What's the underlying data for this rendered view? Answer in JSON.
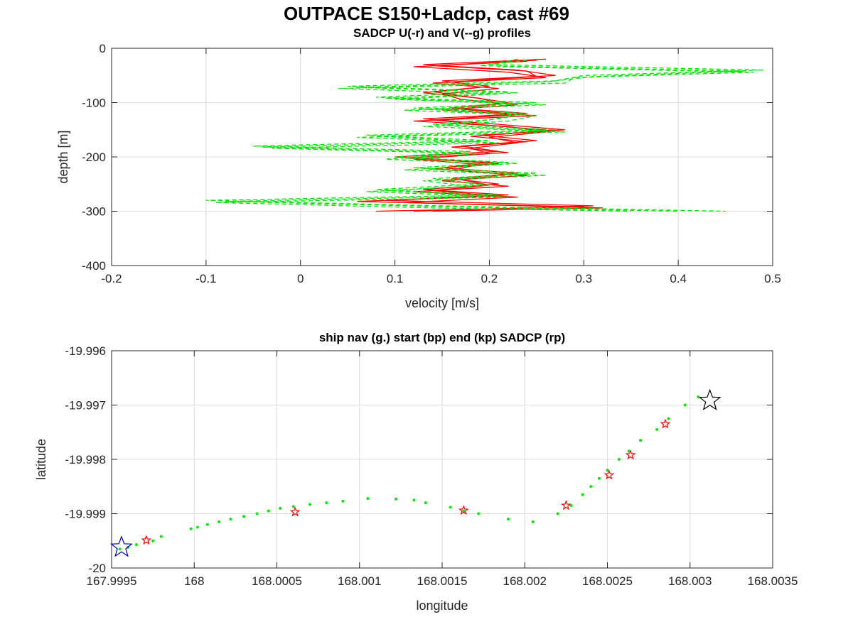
{
  "figure_title": "OUTPACE S150+Ladcp, cast #69",
  "colors": {
    "u_series": "#ff0000",
    "v_series": "#00e600",
    "grid": "#dcdcdc",
    "axes": "#262626",
    "start_marker": "#0000cc",
    "end_marker": "#000000",
    "sadcp_marker": "#ff0000",
    "nav_points": "#00ee00"
  },
  "chart_data": [
    {
      "type": "line",
      "title": "SADCP U(-r) and V(--g) profiles",
      "xlabel": "velocity [m/s]",
      "ylabel": "depth [m]",
      "xlim": [
        -0.2,
        0.5
      ],
      "ylim": [
        -400,
        0
      ],
      "xticks": [
        -0.2,
        -0.1,
        0,
        0.1,
        0.2,
        0.3,
        0.4,
        0.5
      ],
      "xtick_labels": [
        "-0.2",
        "-0.1",
        "0",
        "0.1",
        "0.2",
        "0.3",
        "0.4",
        "0.5"
      ],
      "yticks": [
        0,
        -100,
        -200,
        -300,
        -400
      ],
      "ytick_labels": [
        "0",
        "-100",
        "-200",
        "-300",
        "-400"
      ],
      "grid": true,
      "series": [
        {
          "style": "solid",
          "color": "red",
          "profiles": [
            {
              "depth": [
                -20,
                -30,
                -40,
                -50,
                -60,
                -70,
                -80,
                -90,
                -100,
                -110,
                -120,
                -130,
                -140,
                -150,
                -160,
                -170,
                -180,
                -190,
                -200,
                -210,
                -220,
                -230,
                -240,
                -250,
                -260,
                -270,
                -280,
                -290,
                -300
              ],
              "values": [
                0.26,
                0.13,
                0.23,
                0.27,
                0.15,
                0.2,
                0.14,
                0.18,
                0.22,
                0.16,
                0.24,
                0.13,
                0.21,
                0.28,
                0.19,
                0.25,
                0.17,
                0.21,
                0.1,
                0.2,
                0.15,
                0.23,
                0.16,
                0.21,
                0.13,
                0.22,
                0.09,
                0.31,
                0.12
              ]
            },
            {
              "depth": [
                -22,
                -32,
                -42,
                -52,
                -62,
                -72,
                -82,
                -92,
                -102,
                -112,
                -122,
                -132,
                -142,
                -152,
                -162,
                -172,
                -182,
                -192,
                -202,
                -212,
                -222,
                -232,
                -242,
                -252,
                -262,
                -272,
                -282,
                -292,
                -300
              ],
              "values": [
                0.25,
                0.14,
                0.24,
                0.25,
                0.16,
                0.19,
                0.13,
                0.19,
                0.21,
                0.17,
                0.23,
                0.14,
                0.2,
                0.27,
                0.18,
                0.24,
                0.16,
                0.22,
                0.11,
                0.21,
                0.14,
                0.22,
                0.17,
                0.2,
                0.14,
                0.21,
                0.06,
                0.3,
                0.08
              ]
            },
            {
              "depth": [
                -24,
                -34,
                -44,
                -54,
                -64,
                -74,
                -84,
                -94,
                -104,
                -114,
                -124,
                -134,
                -144,
                -154,
                -164,
                -174,
                -184,
                -194,
                -204,
                -214,
                -224,
                -234,
                -244,
                -254,
                -264,
                -274,
                -284,
                -294,
                -300
              ],
              "values": [
                0.24,
                0.12,
                0.22,
                0.26,
                0.14,
                0.21,
                0.15,
                0.17,
                0.23,
                0.15,
                0.25,
                0.12,
                0.22,
                0.26,
                0.2,
                0.23,
                0.18,
                0.2,
                0.12,
                0.19,
                0.16,
                0.24,
                0.15,
                0.22,
                0.12,
                0.23,
                0.11,
                0.32,
                0.14
              ]
            }
          ]
        },
        {
          "style": "dashed",
          "color": "green",
          "profiles": [
            {
              "depth": [
                -20,
                -30,
                -40,
                -50,
                -60,
                -70,
                -80,
                -90,
                -100,
                -110,
                -120,
                -130,
                -140,
                -150,
                -160,
                -170,
                -180,
                -190,
                -200,
                -210,
                -220,
                -230,
                -240,
                -250,
                -260,
                -270,
                -280,
                -290,
                -300
              ],
              "values": [
                0.23,
                0.2,
                0.49,
                0.3,
                0.27,
                0.05,
                0.22,
                0.08,
                0.25,
                0.12,
                0.24,
                0.21,
                0.14,
                0.27,
                0.07,
                0.2,
                -0.05,
                0.18,
                0.1,
                0.22,
                0.12,
                0.25,
                0.14,
                0.19,
                0.08,
                0.21,
                -0.1,
                0.15,
                0.45
              ]
            },
            {
              "depth": [
                -22,
                -32,
                -42,
                -52,
                -62,
                -72,
                -82,
                -92,
                -102,
                -112,
                -122,
                -132,
                -142,
                -152,
                -162,
                -172,
                -182,
                -192,
                -202,
                -212,
                -222,
                -232,
                -242,
                -252,
                -262,
                -272,
                -282,
                -292,
                -300
              ],
              "values": [
                0.24,
                0.19,
                0.47,
                0.31,
                0.26,
                0.06,
                0.23,
                0.09,
                0.24,
                0.13,
                0.23,
                0.2,
                0.15,
                0.26,
                0.08,
                0.19,
                -0.04,
                0.17,
                0.11,
                0.23,
                0.13,
                0.24,
                0.15,
                0.2,
                0.09,
                0.2,
                -0.08,
                0.16,
                0.4
              ]
            },
            {
              "depth": [
                -24,
                -34,
                -44,
                -54,
                -64,
                -74,
                -84,
                -94,
                -104,
                -114,
                -124,
                -134,
                -144,
                -154,
                -164,
                -174,
                -184,
                -194,
                -204,
                -214,
                -224,
                -234,
                -244,
                -254,
                -264,
                -274,
                -284,
                -294,
                -300
              ],
              "values": [
                0.22,
                0.21,
                0.48,
                0.29,
                0.28,
                0.04,
                0.21,
                0.1,
                0.26,
                0.11,
                0.25,
                0.22,
                0.13,
                0.28,
                0.06,
                0.21,
                -0.03,
                0.19,
                0.09,
                0.21,
                0.11,
                0.26,
                0.13,
                0.18,
                0.07,
                0.22,
                -0.09,
                0.14,
                0.35
              ]
            }
          ]
        }
      ]
    },
    {
      "type": "scatter",
      "title": "ship nav (g.) start (bp) end (kp) SADCP (rp)",
      "xlabel": "longitude",
      "ylabel": "latitude",
      "xlim": [
        167.9995,
        168.0035
      ],
      "ylim": [
        -20,
        -19.996
      ],
      "xticks": [
        167.9995,
        168,
        168.0005,
        168.001,
        168.0015,
        168.002,
        168.0025,
        168.003,
        168.0035
      ],
      "xtick_labels": [
        "167.9995",
        "168",
        "168.0005",
        "168.001",
        "168.0015",
        "168.002",
        "168.0025",
        "168.003",
        "168.0035"
      ],
      "yticks": [
        -19.996,
        -19.997,
        -19.998,
        -19.999,
        -20
      ],
      "ytick_labels": [
        "-19.996",
        "-19.997",
        "-19.998",
        "-19.999",
        "-20"
      ],
      "grid": true,
      "nav_points": {
        "lon": [
          167.99955,
          167.9996,
          167.99965,
          167.99975,
          167.9998,
          167.99998,
          168.00002,
          168.00008,
          168.00015,
          168.00022,
          168.0003,
          168.00038,
          168.00045,
          168.00052,
          168.0006,
          168.0007,
          168.0008,
          168.0009,
          168.00105,
          168.00122,
          168.00133,
          168.0014,
          168.00155,
          168.00163,
          168.00172,
          168.0019,
          168.00205,
          168.0022,
          168.00228,
          168.00235,
          168.0024,
          168.00245,
          168.0025,
          168.00257,
          168.00263,
          168.0027,
          168.0028,
          168.00287,
          168.00297,
          168.00305
        ],
        "lat": [
          -19.99965,
          -19.99962,
          -19.99957,
          -19.9995,
          -19.99942,
          -19.99928,
          -19.99925,
          -19.9992,
          -19.99915,
          -19.9991,
          -19.99905,
          -19.999,
          -19.99895,
          -19.9989,
          -19.99887,
          -19.99883,
          -19.9988,
          -19.99877,
          -19.99872,
          -19.99873,
          -19.99875,
          -19.9988,
          -19.99888,
          -19.99895,
          -19.999,
          -19.9991,
          -19.99915,
          -19.999,
          -19.99885,
          -19.99865,
          -19.9985,
          -19.99835,
          -19.9982,
          -19.998,
          -19.99785,
          -19.99765,
          -19.99745,
          -19.99725,
          -19.997,
          -19.99685
        ]
      },
      "start": {
        "lon": 167.99956,
        "lat": -19.99962
      },
      "end": {
        "lon": 168.00312,
        "lat": -19.99692
      },
      "sadcp": {
        "lon": [
          167.99971,
          168.00061,
          168.00163,
          168.00225,
          168.00251,
          168.00264,
          168.00285
        ],
        "lat": [
          -19.99949,
          -19.99897,
          -19.99894,
          -19.99885,
          -19.99829,
          -19.99792,
          -19.99735
        ]
      }
    }
  ]
}
